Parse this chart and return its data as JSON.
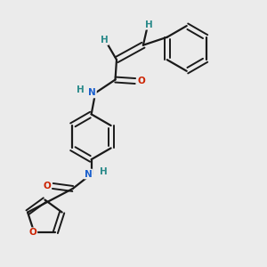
{
  "background_color": "#ebebeb",
  "bond_color": "#1a1a1a",
  "atom_colors": {
    "N": "#1a5fcc",
    "O": "#cc2200",
    "H": "#2a8a8a",
    "C": "#1a1a1a"
  },
  "figsize": [
    3.0,
    3.0
  ],
  "dpi": 100
}
